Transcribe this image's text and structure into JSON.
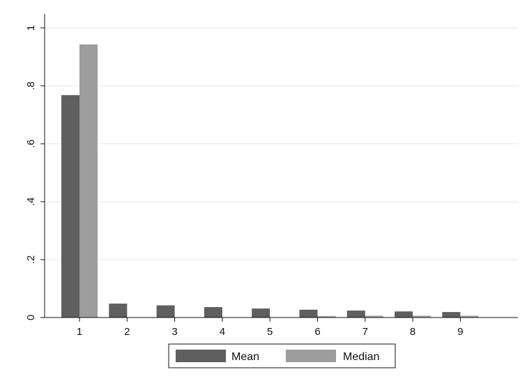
{
  "chart_data": {
    "type": "bar",
    "categories": [
      "1",
      "2",
      "3",
      "4",
      "5",
      "6",
      "7",
      "8",
      "9"
    ],
    "series": [
      {
        "name": "Mean",
        "color": "#5f5f5f",
        "values": [
          0.768,
          0.048,
          0.042,
          0.036,
          0.031,
          0.027,
          0.024,
          0.021,
          0.019
        ]
      },
      {
        "name": "Median",
        "color": "#9d9d9d",
        "values": [
          0.943,
          0.001,
          0.001,
          0.001,
          0.001,
          0.005,
          0.006,
          0.006,
          0.006
        ]
      }
    ],
    "ylim": [
      0,
      1
    ],
    "yticks": [
      0,
      0.2,
      0.4,
      0.6,
      0.8,
      1
    ],
    "ytick_labels": [
      "0",
      ".2",
      ".4",
      ".6",
      ".8",
      "1"
    ],
    "grid": true,
    "grid_color": "#e6e6e6",
    "legend_position": "bottom",
    "title": "",
    "xlabel": "",
    "ylabel": ""
  }
}
